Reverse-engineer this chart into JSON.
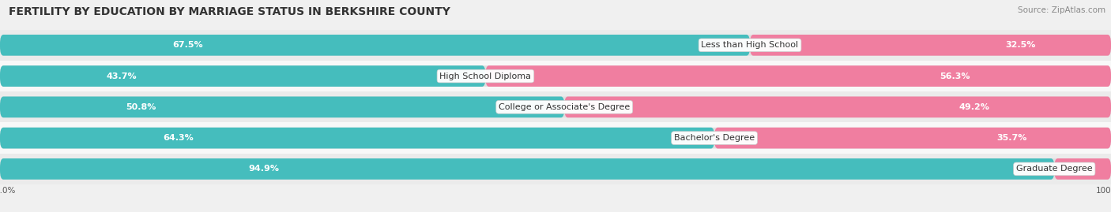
{
  "title": "FERTILITY BY EDUCATION BY MARRIAGE STATUS IN BERKSHIRE COUNTY",
  "source": "Source: ZipAtlas.com",
  "categories": [
    "Less than High School",
    "High School Diploma",
    "College or Associate's Degree",
    "Bachelor's Degree",
    "Graduate Degree"
  ],
  "married": [
    67.5,
    43.7,
    50.8,
    64.3,
    94.9
  ],
  "unmarried": [
    32.5,
    56.3,
    49.2,
    35.7,
    5.1
  ],
  "married_color": "#45BDBD",
  "unmarried_color": "#F07EA0",
  "track_color": "#E0E0E0",
  "row_bg_even": "#EBEBEB",
  "row_bg_odd": "#F8F8F8",
  "title_fontsize": 10,
  "source_fontsize": 7.5,
  "bar_label_fontsize": 8,
  "category_fontsize": 8,
  "legend_fontsize": 8.5,
  "axis_label_fontsize": 7.5,
  "bar_height": 0.68,
  "figsize": [
    14.06,
    2.69
  ],
  "dpi": 100
}
